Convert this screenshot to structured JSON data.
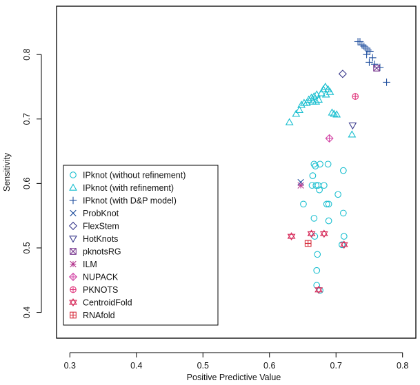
{
  "chart_data": {
    "type": "scatter",
    "title": "",
    "xlabel": "Positive Predictive Value",
    "ylabel": "Sensitivity",
    "xlim": [
      0.28,
      0.82
    ],
    "ylim": [
      0.36,
      0.875
    ],
    "xticks": [
      0.3,
      0.4,
      0.5,
      0.6,
      0.7,
      0.8
    ],
    "yticks": [
      0.4,
      0.5,
      0.6,
      0.7,
      0.8
    ],
    "grid": false,
    "legend_position": "bottom-left",
    "series": [
      {
        "name": "IPknot (without refinement)",
        "marker": "circle",
        "color": "#17becf",
        "points": [
          [
            0.667,
            0.63
          ],
          [
            0.669,
            0.627
          ],
          [
            0.676,
            0.63
          ],
          [
            0.688,
            0.63
          ],
          [
            0.711,
            0.62
          ],
          [
            0.665,
            0.612
          ],
          [
            0.67,
            0.597
          ],
          [
            0.673,
            0.597
          ],
          [
            0.682,
            0.597
          ],
          [
            0.675,
            0.59
          ],
          [
            0.664,
            0.597
          ],
          [
            0.703,
            0.583
          ],
          [
            0.686,
            0.568
          ],
          [
            0.689,
            0.568
          ],
          [
            0.651,
            0.568
          ],
          [
            0.711,
            0.554
          ],
          [
            0.667,
            0.546
          ],
          [
            0.689,
            0.542
          ],
          [
            0.712,
            0.518
          ],
          [
            0.668,
            0.518
          ],
          [
            0.709,
            0.505
          ],
          [
            0.672,
            0.49
          ],
          [
            0.671,
            0.465
          ],
          [
            0.671,
            0.442
          ],
          [
            0.676,
            0.434
          ]
        ]
      },
      {
        "name": "IPknot (with refinement)",
        "marker": "triangle-up",
        "color": "#17becf",
        "points": [
          [
            0.63,
            0.695
          ],
          [
            0.64,
            0.708
          ],
          [
            0.645,
            0.714
          ],
          [
            0.648,
            0.722
          ],
          [
            0.652,
            0.725
          ],
          [
            0.656,
            0.725
          ],
          [
            0.659,
            0.73
          ],
          [
            0.663,
            0.733
          ],
          [
            0.667,
            0.735
          ],
          [
            0.671,
            0.738
          ],
          [
            0.665,
            0.727
          ],
          [
            0.67,
            0.727
          ],
          [
            0.674,
            0.73
          ],
          [
            0.678,
            0.74
          ],
          [
            0.681,
            0.746
          ],
          [
            0.684,
            0.75
          ],
          [
            0.688,
            0.746
          ],
          [
            0.691,
            0.742
          ],
          [
            0.685,
            0.738
          ],
          [
            0.694,
            0.71
          ],
          [
            0.697,
            0.708
          ],
          [
            0.701,
            0.707
          ],
          [
            0.724,
            0.676
          ]
        ]
      },
      {
        "name": "IPknot (with D&P model)",
        "marker": "plus",
        "color": "#1f4e9e",
        "points": [
          [
            0.733,
            0.82
          ],
          [
            0.736,
            0.82
          ],
          [
            0.739,
            0.815
          ],
          [
            0.742,
            0.813
          ],
          [
            0.745,
            0.81
          ],
          [
            0.748,
            0.807
          ],
          [
            0.751,
            0.805
          ],
          [
            0.746,
            0.8
          ],
          [
            0.755,
            0.795
          ],
          [
            0.75,
            0.788
          ],
          [
            0.758,
            0.785
          ],
          [
            0.766,
            0.78
          ],
          [
            0.776,
            0.757
          ]
        ]
      },
      {
        "name": "ProbKnot",
        "marker": "cross",
        "color": "#1f4e9e",
        "points": [
          [
            0.647,
            0.602
          ]
        ]
      },
      {
        "name": "FlexStem",
        "marker": "diamond",
        "color": "#3a3a8c",
        "points": [
          [
            0.71,
            0.77
          ]
        ]
      },
      {
        "name": "HotKnots",
        "marker": "triangle-down",
        "color": "#3a3a8c",
        "points": [
          [
            0.725,
            0.69
          ]
        ]
      },
      {
        "name": "pknotsRG",
        "marker": "square-x",
        "color": "#7a3a90",
        "points": [
          [
            0.761,
            0.779
          ]
        ]
      },
      {
        "name": "ILM",
        "marker": "asterisk",
        "color": "#b5398f",
        "points": [
          [
            0.647,
            0.597
          ]
        ]
      },
      {
        "name": "NUPACK",
        "marker": "diamond-plus",
        "color": "#d44aa8",
        "points": [
          [
            0.69,
            0.67
          ]
        ]
      },
      {
        "name": "PKNOTS",
        "marker": "circle-plus",
        "color": "#e0337a",
        "points": [
          [
            0.729,
            0.735
          ]
        ]
      },
      {
        "name": "CentroidFold",
        "marker": "star-of-david",
        "color": "#d62b5a",
        "points": [
          [
            0.633,
            0.518
          ],
          [
            0.663,
            0.522
          ],
          [
            0.682,
            0.522
          ],
          [
            0.712,
            0.505
          ],
          [
            0.674,
            0.435
          ]
        ]
      },
      {
        "name": "RNAfold",
        "marker": "square-plus",
        "color": "#d62b3a",
        "points": [
          [
            0.658,
            0.507
          ]
        ]
      }
    ]
  }
}
